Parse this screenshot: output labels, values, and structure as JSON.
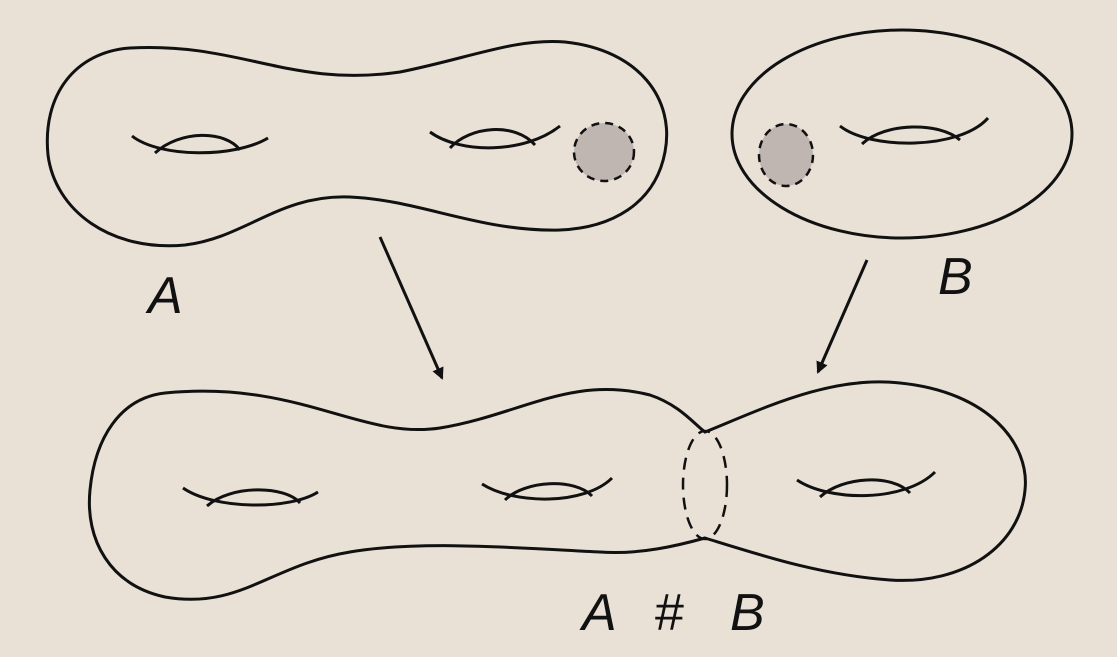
{
  "labels": {
    "surface_a": "A",
    "surface_b": "B",
    "sum_a": "A",
    "sum_hash": "#",
    "sum_b": "B"
  },
  "colors": {
    "background": "#e9e1d6",
    "stroke": "#111111",
    "disk_fill": "#bfb6b2"
  }
}
